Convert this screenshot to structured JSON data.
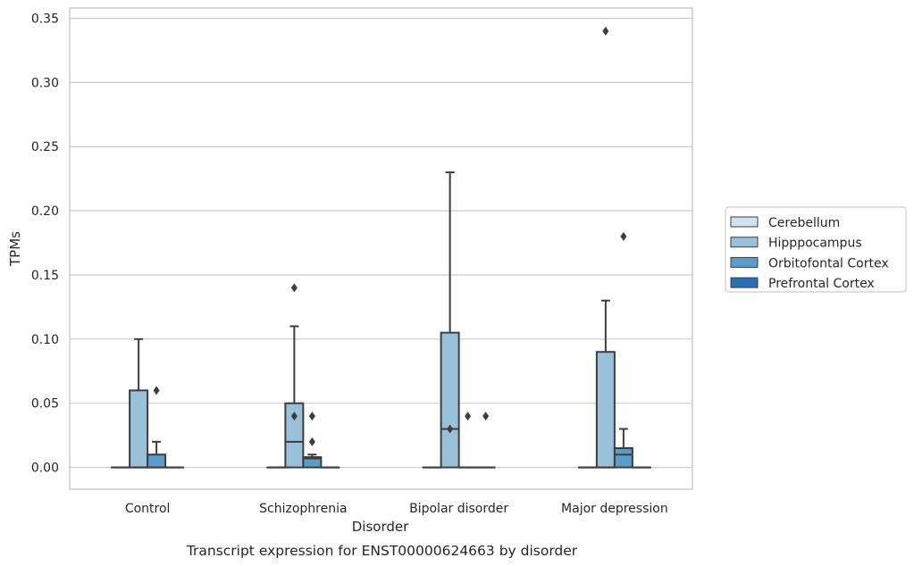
{
  "chart_data": {
    "type": "box",
    "xlabel": "Disorder",
    "ylabel": "TPMs",
    "caption": "Transcript expression for ENST00000624663 by disorder",
    "ylim": [
      -0.017,
      0.358
    ],
    "yticks": [
      0.0,
      0.05,
      0.1,
      0.15,
      0.2,
      0.25,
      0.3,
      0.35
    ],
    "ytick_labels": [
      "0.00",
      "0.05",
      "0.10",
      "0.15",
      "0.20",
      "0.25",
      "0.30",
      "0.35"
    ],
    "grid": "horizontal",
    "legend_position": "right",
    "categories": [
      "Control",
      "Schizophrenia",
      "Bipolar disorder",
      "Major depression"
    ],
    "series": [
      {
        "name": "Cerebellum",
        "color": "#d0e1f2",
        "boxes": [
          {
            "q1": 0,
            "median": 0,
            "q3": 0,
            "whisker_low": 0,
            "whisker_high": 0,
            "outliers": []
          },
          {
            "q1": 0,
            "median": 0,
            "q3": 0,
            "whisker_low": 0,
            "whisker_high": 0,
            "outliers": []
          },
          {
            "q1": 0,
            "median": 0,
            "q3": 0,
            "whisker_low": 0,
            "whisker_high": 0,
            "outliers": []
          },
          {
            "q1": 0,
            "median": 0,
            "q3": 0,
            "whisker_low": 0,
            "whisker_high": 0,
            "outliers": []
          }
        ]
      },
      {
        "name": "Hipppocampus",
        "color": "#9ac1da",
        "boxes": [
          {
            "q1": 0,
            "median": 0,
            "q3": 0.06,
            "whisker_low": 0,
            "whisker_high": 0.1,
            "outliers": []
          },
          {
            "q1": 0,
            "median": 0.02,
            "q3": 0.05,
            "whisker_low": 0,
            "whisker_high": 0.11,
            "outliers": [
              0.04,
              0.14
            ]
          },
          {
            "q1": 0,
            "median": 0.03,
            "q3": 0.105,
            "whisker_low": 0,
            "whisker_high": 0.23,
            "outliers": [
              0.03
            ]
          },
          {
            "q1": 0,
            "median": 0,
            "q3": 0.09,
            "whisker_low": 0,
            "whisker_high": 0.13,
            "outliers": [
              0.34
            ]
          }
        ]
      },
      {
        "name": "Orbitofontal Cortex",
        "color": "#5b9dc9",
        "boxes": [
          {
            "q1": 0,
            "median": 0,
            "q3": 0.01,
            "whisker_low": 0,
            "whisker_high": 0.02,
            "outliers": [
              0.06
            ]
          },
          {
            "q1": 0,
            "median": 0.007,
            "q3": 0.008,
            "whisker_low": 0,
            "whisker_high": 0.01,
            "outliers": [
              0.02,
              0.04
            ]
          },
          {
            "q1": 0,
            "median": 0,
            "q3": 0,
            "whisker_low": 0,
            "whisker_high": 0,
            "outliers": [
              0.04
            ]
          },
          {
            "q1": 0,
            "median": 0.01,
            "q3": 0.015,
            "whisker_low": 0,
            "whisker_high": 0.03,
            "outliers": [
              0.18
            ]
          }
        ]
      },
      {
        "name": "Prefrontal Cortex",
        "color": "#2a6fb0",
        "boxes": [
          {
            "q1": 0,
            "median": 0,
            "q3": 0,
            "whisker_low": 0,
            "whisker_high": 0,
            "outliers": []
          },
          {
            "q1": 0,
            "median": 0,
            "q3": 0,
            "whisker_low": 0,
            "whisker_high": 0,
            "outliers": []
          },
          {
            "q1": 0,
            "median": 0,
            "q3": 0,
            "whisker_low": 0,
            "whisker_high": 0,
            "outliers": [
              0.04
            ]
          },
          {
            "q1": 0,
            "median": 0,
            "q3": 0,
            "whisker_low": 0,
            "whisker_high": 0,
            "outliers": []
          }
        ]
      }
    ],
    "colors": {
      "frame": "#cccccc",
      "grid": "#cccccc",
      "lines": "#3d3d3d"
    }
  }
}
